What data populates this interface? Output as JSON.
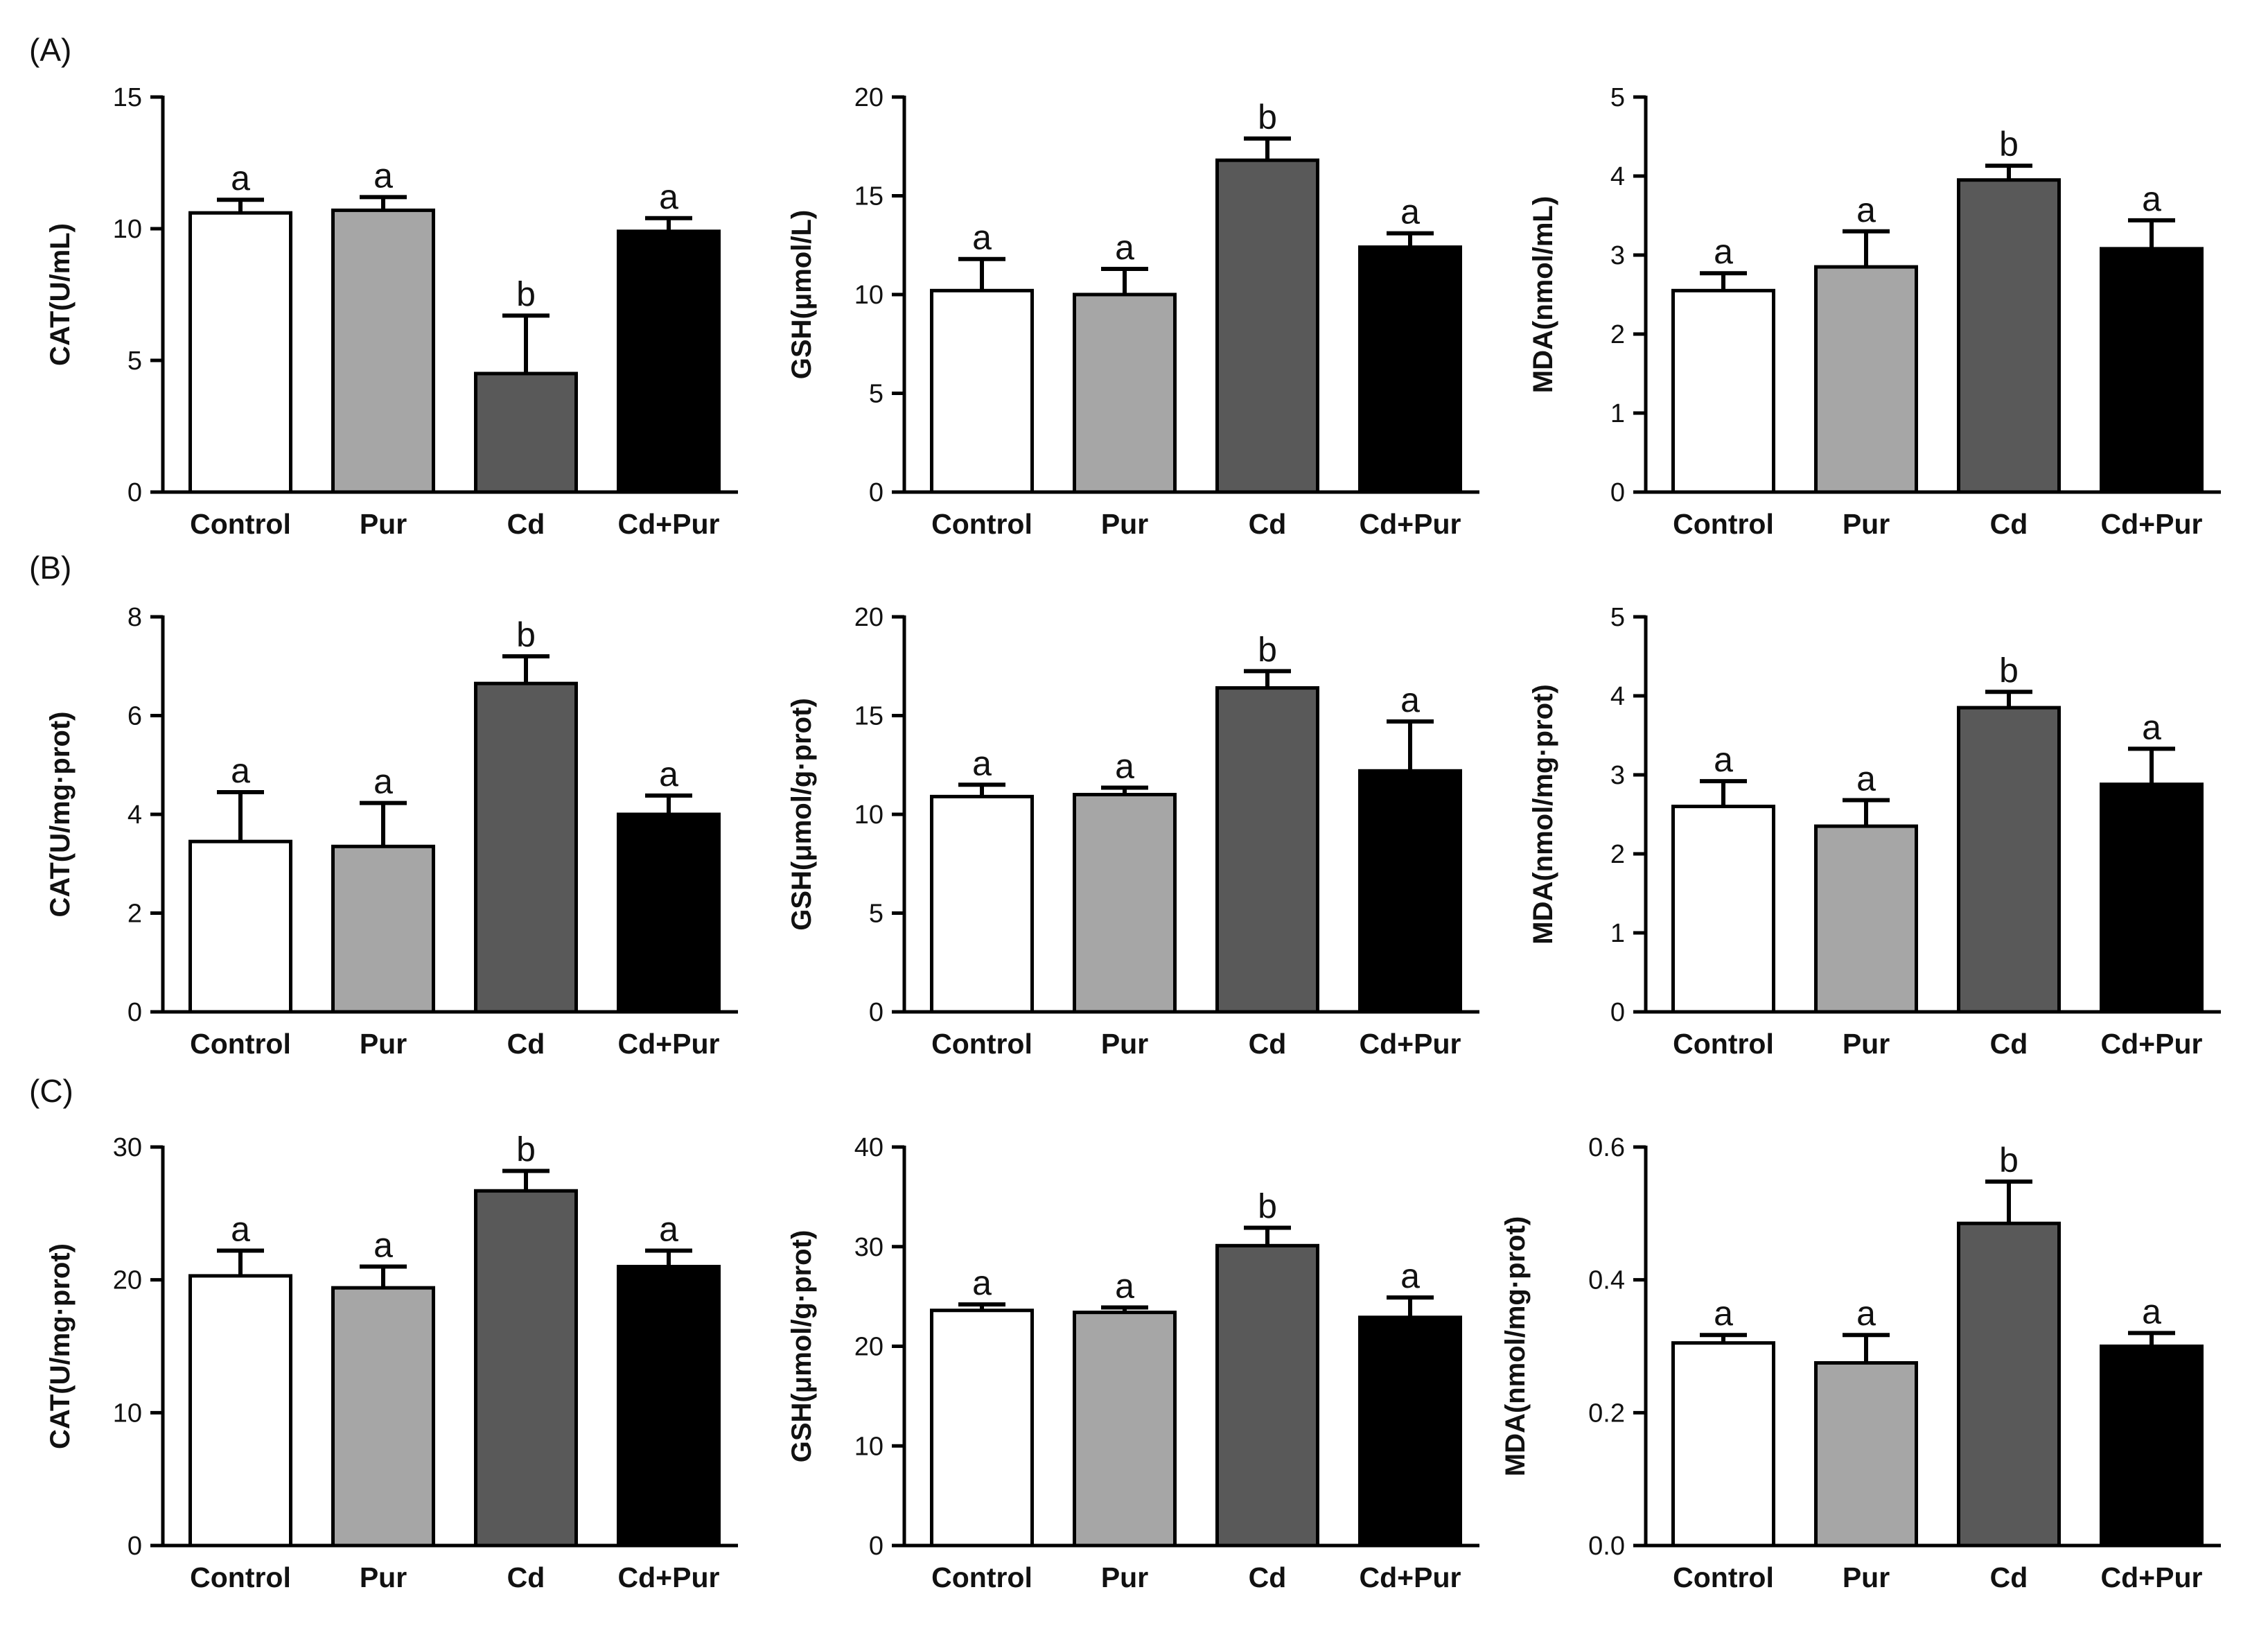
{
  "figure": {
    "colors": {
      "Control": "#ffffff",
      "Pur": "#a6a6a6",
      "Cd": "#595959",
      "Cd+Pur": "#000000",
      "axis": "#000000"
    },
    "rows": [
      {
        "label": "(A)"
      },
      {
        "label": "(B)"
      },
      {
        "label": "(C)"
      }
    ]
  },
  "chart_data": [
    {
      "type": "bar",
      "row": 0,
      "col": 0,
      "categories": [
        "Control",
        "Pur",
        "Cd",
        "Cd+Pur"
      ],
      "values": [
        10.6,
        10.7,
        4.5,
        9.9
      ],
      "errors": [
        0.5,
        0.5,
        2.2,
        0.5
      ],
      "significance": [
        "a",
        "a",
        "b",
        "a"
      ],
      "ylabel": "CAT(U/mL)",
      "ylim": [
        0,
        15
      ],
      "ticks": [
        0,
        5,
        10,
        15
      ],
      "tick_labels": [
        "0",
        "5",
        "10",
        "15"
      ]
    },
    {
      "type": "bar",
      "row": 0,
      "col": 1,
      "categories": [
        "Control",
        "Pur",
        "Cd",
        "Cd+Pur"
      ],
      "values": [
        10.2,
        10.0,
        16.8,
        12.4
      ],
      "errors": [
        1.6,
        1.3,
        1.1,
        0.7
      ],
      "significance": [
        "a",
        "a",
        "b",
        "a"
      ],
      "ylabel": "GSH(μmol/L)",
      "ylim": [
        0,
        20
      ],
      "ticks": [
        0,
        5,
        10,
        15,
        20
      ],
      "tick_labels": [
        "0",
        "5",
        "10",
        "15",
        "20"
      ]
    },
    {
      "type": "bar",
      "row": 0,
      "col": 2,
      "categories": [
        "Control",
        "Pur",
        "Cd",
        "Cd+Pur"
      ],
      "values": [
        2.55,
        2.85,
        3.95,
        3.08
      ],
      "errors": [
        0.22,
        0.45,
        0.18,
        0.36
      ],
      "significance": [
        "a",
        "a",
        "b",
        "a"
      ],
      "ylabel": "MDA(nmol/mL)",
      "ylim": [
        0,
        5
      ],
      "ticks": [
        0,
        1,
        2,
        3,
        4,
        5
      ],
      "tick_labels": [
        "0",
        "1",
        "2",
        "3",
        "4",
        "5"
      ]
    },
    {
      "type": "bar",
      "row": 1,
      "col": 0,
      "categories": [
        "Control",
        "Pur",
        "Cd",
        "Cd+Pur"
      ],
      "values": [
        3.45,
        3.35,
        6.65,
        4.0
      ],
      "errors": [
        1.0,
        0.88,
        0.55,
        0.38
      ],
      "significance": [
        "a",
        "a",
        "b",
        "a"
      ],
      "ylabel": "CAT(U/mg·prot)",
      "ylim": [
        0,
        8
      ],
      "ticks": [
        0,
        2,
        4,
        6,
        8
      ],
      "tick_labels": [
        "0",
        "2",
        "4",
        "6",
        "8"
      ]
    },
    {
      "type": "bar",
      "row": 1,
      "col": 1,
      "categories": [
        "Control",
        "Pur",
        "Cd",
        "Cd+Pur"
      ],
      "values": [
        10.9,
        11.0,
        16.4,
        12.2
      ],
      "errors": [
        0.6,
        0.35,
        0.85,
        2.5
      ],
      "significance": [
        "a",
        "a",
        "b",
        "a"
      ],
      "ylabel": "GSH(μmol/g·prot)",
      "ylim": [
        0,
        20
      ],
      "ticks": [
        0,
        5,
        10,
        15,
        20
      ],
      "tick_labels": [
        "0",
        "5",
        "10",
        "15",
        "20"
      ]
    },
    {
      "type": "bar",
      "row": 1,
      "col": 2,
      "categories": [
        "Control",
        "Pur",
        "Cd",
        "Cd+Pur"
      ],
      "values": [
        2.6,
        2.35,
        3.85,
        2.88
      ],
      "errors": [
        0.32,
        0.33,
        0.2,
        0.45
      ],
      "significance": [
        "a",
        "a",
        "b",
        "a"
      ],
      "ylabel": "MDA(nmol/mg·prot)",
      "ylim": [
        0,
        5
      ],
      "ticks": [
        0,
        1,
        2,
        3,
        4,
        5
      ],
      "tick_labels": [
        "0",
        "1",
        "2",
        "3",
        "4",
        "5"
      ]
    },
    {
      "type": "bar",
      "row": 2,
      "col": 0,
      "categories": [
        "Control",
        "Pur",
        "Cd",
        "Cd+Pur"
      ],
      "values": [
        20.3,
        19.4,
        26.7,
        21.0
      ],
      "errors": [
        1.9,
        1.6,
        1.5,
        1.2
      ],
      "significance": [
        "a",
        "a",
        "b",
        "a"
      ],
      "ylabel": "CAT(U/mg·prot)",
      "ylim": [
        0,
        30
      ],
      "ticks": [
        0,
        10,
        20,
        30
      ],
      "tick_labels": [
        "0",
        "10",
        "20",
        "30"
      ]
    },
    {
      "type": "bar",
      "row": 2,
      "col": 1,
      "categories": [
        "Control",
        "Pur",
        "Cd",
        "Cd+Pur"
      ],
      "values": [
        23.6,
        23.4,
        30.1,
        22.9
      ],
      "errors": [
        0.6,
        0.5,
        1.8,
        2.0
      ],
      "significance": [
        "a",
        "a",
        "b",
        "a"
      ],
      "ylabel": "GSH(μmol/g·prot)",
      "ylim": [
        0,
        40
      ],
      "ticks": [
        0,
        10,
        20,
        30,
        40
      ],
      "tick_labels": [
        "0",
        "10",
        "20",
        "30",
        "40"
      ]
    },
    {
      "type": "bar",
      "row": 2,
      "col": 2,
      "categories": [
        "Control",
        "Pur",
        "Cd",
        "Cd+Pur"
      ],
      "values": [
        0.305,
        0.275,
        0.485,
        0.3
      ],
      "errors": [
        0.012,
        0.042,
        0.063,
        0.02
      ],
      "significance": [
        "a",
        "a",
        "b",
        "a"
      ],
      "ylabel": "MDA(nmol/mg·prot)",
      "ylim": [
        0,
        0.6
      ],
      "ticks": [
        0,
        0.2,
        0.4,
        0.6
      ],
      "tick_labels": [
        "0.0",
        "0.2",
        "0.4",
        "0.6"
      ]
    }
  ]
}
